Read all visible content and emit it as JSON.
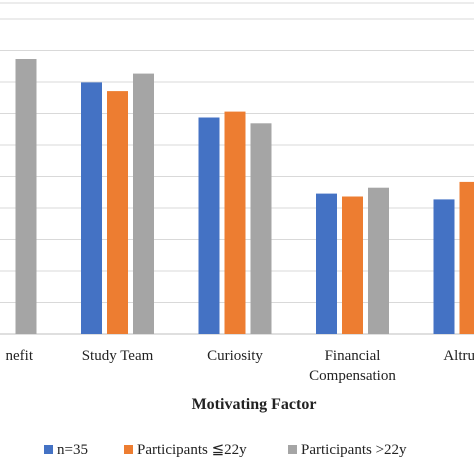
{
  "chart_data": {
    "type": "bar",
    "categories": [
      [
        "nefit"
      ],
      [
        "Study Team"
      ],
      [
        "Curiosity"
      ],
      [
        "Financial",
        "Compensation"
      ],
      [
        "Altruism"
      ]
    ],
    "series": [
      {
        "name": "n=35",
        "color": "#4472C4",
        "values": [
          null,
          4.3,
          3.7,
          2.4,
          2.3
        ]
      },
      {
        "name": "Participants ≦22y",
        "color": "#ED7D31",
        "values": [
          null,
          4.15,
          3.8,
          2.35,
          2.6
        ]
      },
      {
        "name": "Participants >22y",
        "color": "#A5A5A5",
        "values": [
          4.7,
          4.45,
          3.6,
          2.5,
          2.5
        ]
      }
    ],
    "xlabel": "Motivating Factor",
    "ylim": [
      0,
      5.4
    ],
    "grid": true,
    "legend_position": "bottom"
  }
}
